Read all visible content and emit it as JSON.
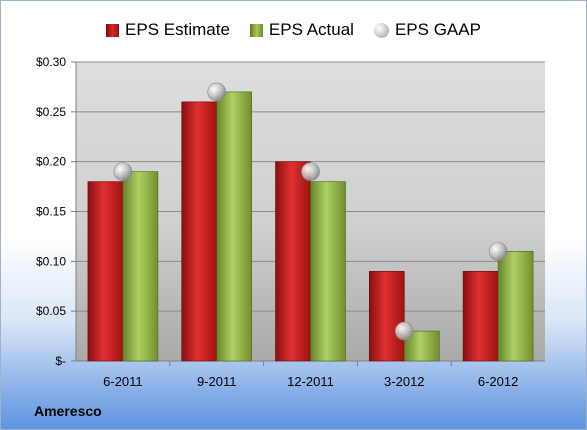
{
  "company": "Ameresco",
  "legend": {
    "estimate": "EPS Estimate",
    "actual": "EPS Actual",
    "gaap": "EPS GAAP"
  },
  "colors": {
    "estimate": "#c81e1e",
    "actual": "#8db23c",
    "gaap": "#b5b5b5"
  },
  "chart_data": {
    "type": "bar",
    "categories": [
      "6-2011",
      "9-2011",
      "12-2011",
      "3-2012",
      "6-2012"
    ],
    "series": [
      {
        "name": "EPS Estimate",
        "values": [
          0.18,
          0.26,
          0.2,
          0.09,
          0.09
        ]
      },
      {
        "name": "EPS Actual",
        "values": [
          0.19,
          0.27,
          0.18,
          0.03,
          0.11
        ]
      },
      {
        "name": "EPS GAAP",
        "values": [
          0.19,
          0.27,
          0.19,
          0.03,
          0.11
        ],
        "marker": "circle"
      }
    ],
    "yticks": [
      "$-",
      "$0.05",
      "$0.10",
      "$0.15",
      "$0.20",
      "$0.25",
      "$0.30"
    ],
    "ylim": [
      0,
      0.3
    ],
    "grid": true,
    "legend_position": "top"
  }
}
